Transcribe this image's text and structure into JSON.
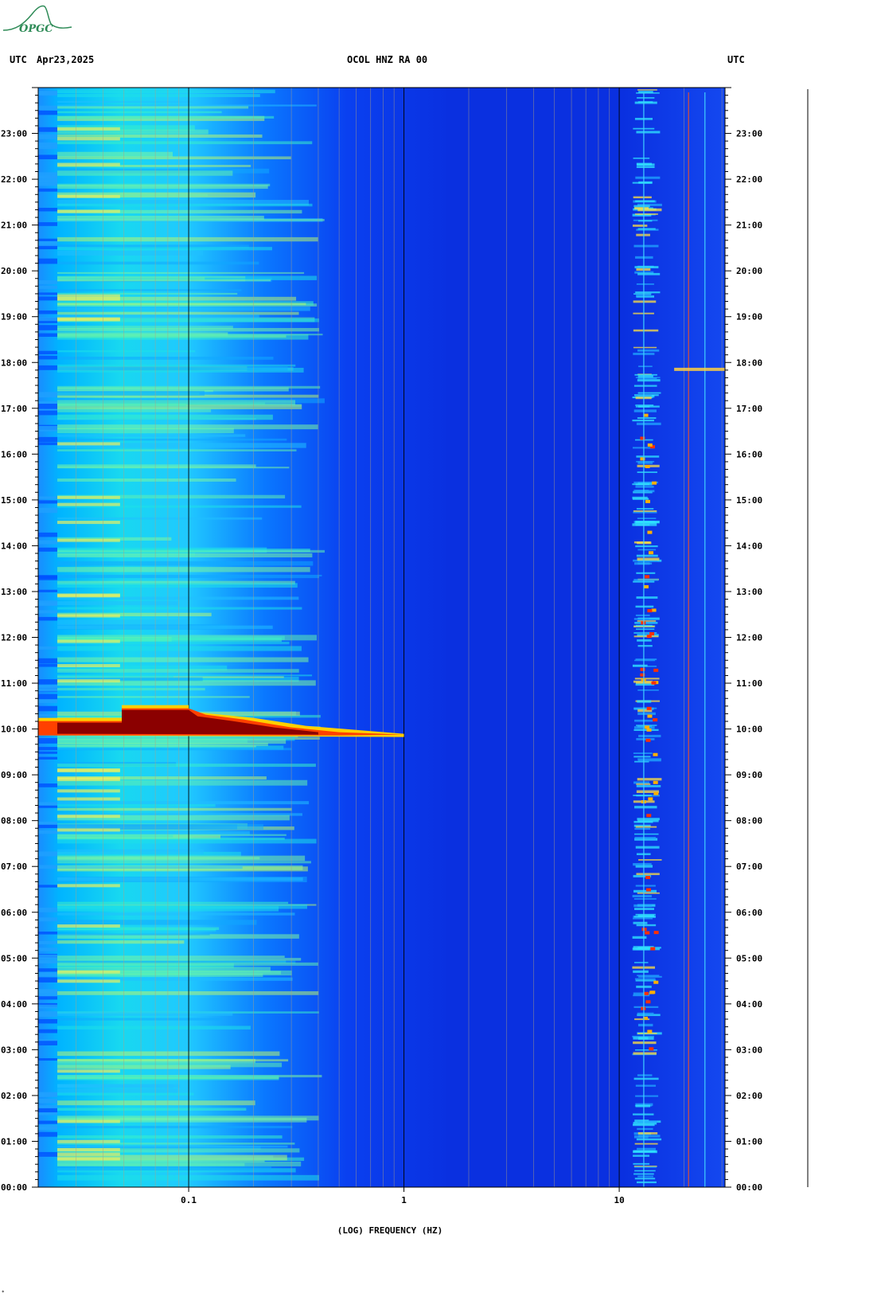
{
  "header": {
    "left_tz": "UTC",
    "date": "Apr23,2025",
    "station": "OCOL HNZ RA 00",
    "right_tz": "UTC"
  },
  "logo": {
    "text": "OPGC",
    "color": "#2e8b57"
  },
  "footer_mark": "*",
  "chart_data": {
    "type": "heatmap",
    "title": "OCOL HNZ RA 00",
    "xlabel": "(LOG) FREQUENCY (HZ)",
    "ylabel": "",
    "x_scale": "log",
    "xlim": [
      0.02,
      31
    ],
    "x_ticks": [
      0.1,
      1,
      10
    ],
    "x_tick_labels": [
      "0.1",
      "1",
      "10"
    ],
    "y_ticks_hours": [
      0,
      1,
      2,
      3,
      4,
      5,
      6,
      7,
      8,
      9,
      10,
      11,
      12,
      13,
      14,
      15,
      16,
      17,
      18,
      19,
      20,
      21,
      22,
      23
    ],
    "y_tick_labels": [
      "00:00",
      "01:00",
      "02:00",
      "03:00",
      "04:00",
      "05:00",
      "06:00",
      "07:00",
      "08:00",
      "09:00",
      "10:00",
      "11:00",
      "12:00",
      "13:00",
      "14:00",
      "15:00",
      "16:00",
      "17:00",
      "18:00",
      "19:00",
      "20:00",
      "21:00",
      "22:00",
      "23:00"
    ],
    "ylim_hours": [
      0,
      24
    ],
    "colormap": [
      "#0000c8",
      "#0050ff",
      "#00c8ff",
      "#40ffc0",
      "#ffff00",
      "#ff8000",
      "#cc0000",
      "#800000"
    ],
    "background_level": "#1030e0",
    "events": [
      {
        "time_h": 10.0,
        "freq_hz_max": 1.0,
        "peak_color": "#8b0000",
        "description_level": "max"
      }
    ],
    "noise_band_hz": [
      12.5,
      14.5
    ],
    "noise_lines_hz": [
      13.0,
      21.0,
      25.0
    ]
  }
}
